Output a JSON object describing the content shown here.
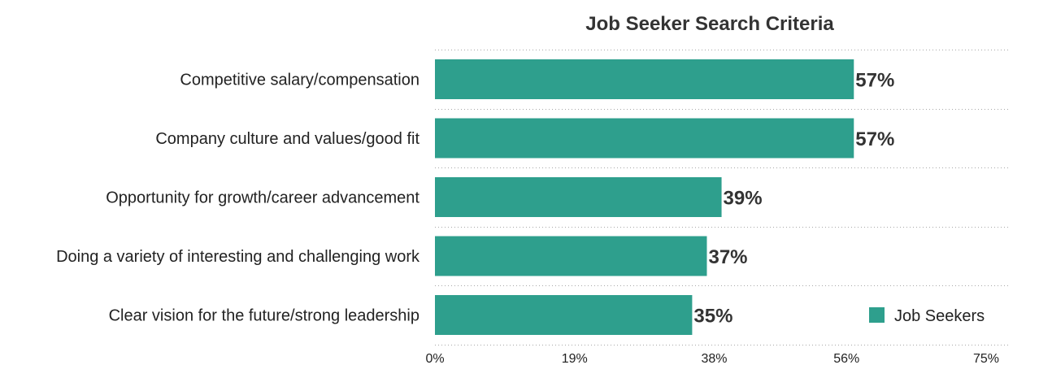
{
  "chart_data": {
    "type": "bar",
    "orientation": "horizontal",
    "title": "Job Seeker Search Criteria",
    "categories": [
      "Competitive salary/compensation",
      "Company culture and values/good fit",
      "Opportunity for growth/career advancement",
      "Doing a variety of interesting and challenging work",
      "Clear vision for the future/strong leadership"
    ],
    "series": [
      {
        "name": "Job Seekers",
        "values": [
          57,
          57,
          39,
          37,
          35
        ],
        "value_labels": [
          "57%",
          "57%",
          "39%",
          "37%",
          "35%"
        ],
        "color": "#2e9f8d"
      }
    ],
    "x_ticks": [
      0,
      19,
      38,
      56,
      75
    ],
    "x_tick_labels": [
      "0%",
      "19%",
      "38%",
      "56%",
      "75%"
    ],
    "xlim": [
      0,
      75
    ],
    "xlabel": "",
    "ylabel": "",
    "grid": true,
    "legend_position": "bottom-right"
  }
}
